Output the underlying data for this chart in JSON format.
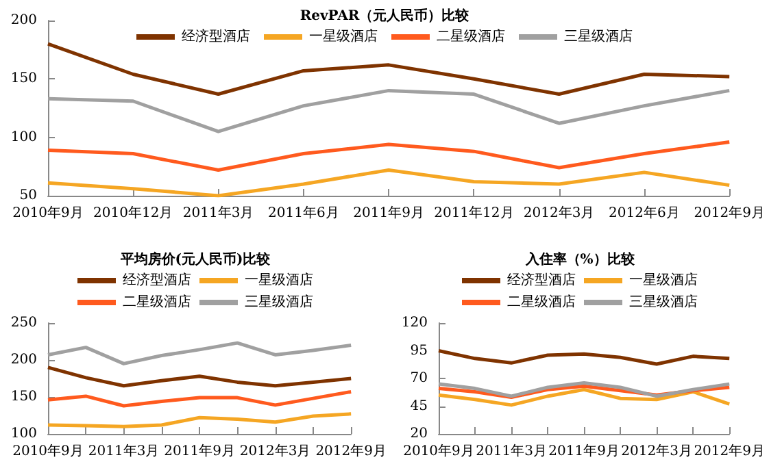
{
  "chart_data": [
    {
      "type": "line",
      "title": "RevPAR（元人民币）比较",
      "categories": [
        "2010年9月",
        "2010年12月",
        "2011年3月",
        "2011年6月",
        "2011年9月",
        "2011年12月",
        "2012年3月",
        "2012年6月",
        "2012年9月"
      ],
      "ylim": [
        50,
        200
      ],
      "yticks": [
        50,
        100,
        150,
        200
      ],
      "legend": "top",
      "marker": "none",
      "series": [
        {
          "name": "经济型酒店",
          "color": "#7f3300",
          "values": [
            180,
            154,
            137,
            157,
            162,
            150,
            137,
            154,
            152
          ]
        },
        {
          "name": "一星级酒店",
          "color": "#f5a623",
          "values": [
            61,
            56,
            50,
            60,
            72,
            62,
            60,
            70,
            59
          ]
        },
        {
          "name": "二星级酒店",
          "color": "#ff5a1e",
          "values": [
            89,
            86,
            72,
            86,
            94,
            88,
            74,
            86,
            96
          ]
        },
        {
          "name": "三星级酒店",
          "color": "#a0a0a0",
          "values": [
            133,
            131,
            105,
            127,
            140,
            137,
            112,
            127,
            140
          ]
        }
      ]
    },
    {
      "type": "line",
      "title": "平均房价(元人民币)比较",
      "categories": [
        "2010年9月",
        null,
        "2011年3月",
        null,
        "2011年9月",
        null,
        "2012年3月",
        null,
        "2012年9月"
      ],
      "ylim": [
        100,
        250
      ],
      "yticks": [
        100,
        150,
        200,
        250
      ],
      "legend": "top",
      "marker": "none",
      "series": [
        {
          "name": "经济型酒店",
          "color": "#7f3300",
          "values": [
            190,
            176,
            165,
            172,
            178,
            170,
            165,
            170,
            175
          ]
        },
        {
          "name": "一星级酒店",
          "color": "#f5a623",
          "values": [
            112,
            111,
            110,
            112,
            122,
            120,
            116,
            124,
            127
          ]
        },
        {
          "name": "二星级酒店",
          "color": "#ff5a1e",
          "values": [
            146,
            151,
            138,
            144,
            149,
            149,
            139,
            148,
            157
          ]
        },
        {
          "name": "三星级酒店",
          "color": "#a0a0a0",
          "values": [
            207,
            217,
            195,
            206,
            214,
            223,
            207,
            213,
            220
          ]
        }
      ]
    },
    {
      "type": "line",
      "title": "入住率（%）比较",
      "categories": [
        "2010年9月",
        null,
        "2011年3月",
        null,
        "2011年9月",
        null,
        "2012年3月",
        null,
        "2012年9月"
      ],
      "ylim": [
        20,
        120
      ],
      "yticks": [
        20,
        45,
        70,
        95,
        120
      ],
      "legend": "top",
      "marker": "none",
      "series": [
        {
          "name": "经济型酒店",
          "color": "#7f3300",
          "values": [
            95,
            88,
            84,
            91,
            92,
            89,
            83,
            90,
            88
          ]
        },
        {
          "name": "一星级酒店",
          "color": "#f5a623",
          "values": [
            55,
            51,
            46,
            54,
            60,
            52,
            51,
            58,
            47
          ]
        },
        {
          "name": "二星级酒店",
          "color": "#ff5a1e",
          "values": [
            61,
            58,
            53,
            60,
            63,
            59,
            55,
            59,
            62
          ]
        },
        {
          "name": "三星级酒店",
          "color": "#a0a0a0",
          "values": [
            65,
            61,
            54,
            62,
            66,
            62,
            54,
            60,
            65
          ]
        }
      ]
    }
  ]
}
